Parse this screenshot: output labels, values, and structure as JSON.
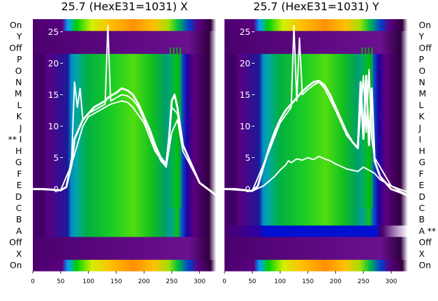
{
  "chart_data": [
    {
      "type": "heatmap",
      "title": "25.7 (HexE31=1031) X",
      "xlabel": "",
      "ylabel": "",
      "xlim": [
        0,
        330
      ],
      "ylim": [
        -13,
        27
      ],
      "x_ticks": [
        0,
        50,
        100,
        150,
        200,
        250,
        300
      ],
      "y_ticks": [
        0,
        5,
        10,
        15,
        20,
        25
      ],
      "row_labels": [
        "On",
        "X",
        "Off",
        "A",
        "B",
        "C",
        "D",
        "E",
        "F",
        "G",
        "H",
        "** I",
        "J",
        "K",
        "L",
        "M",
        "N",
        "O",
        "P",
        "Off",
        "Y",
        "On"
      ],
      "label_side": "left",
      "colormap": "nipy_spectral",
      "series": [
        {
          "name": "",
          "x": [
            0,
            20,
            50,
            60,
            70,
            75,
            80,
            85,
            90,
            100,
            110,
            120,
            130,
            135,
            140,
            150,
            160,
            170,
            180,
            190,
            200,
            210,
            220,
            230,
            240,
            245,
            250,
            255,
            260,
            265,
            270,
            280,
            300,
            330
          ],
          "y": [
            0,
            0,
            -0.2,
            0.3,
            4,
            8,
            9,
            10,
            11,
            12,
            13,
            13.5,
            14,
            14.5,
            14.8,
            15.3,
            16,
            15.7,
            15,
            13.5,
            11.5,
            9.5,
            7,
            5,
            4,
            8,
            14,
            15,
            13,
            10,
            7,
            5,
            1,
            -1
          ]
        },
        {
          "name": "",
          "x": [
            0,
            50,
            60,
            70,
            75,
            80,
            85,
            90,
            100,
            110,
            120,
            130,
            135,
            140,
            150,
            160,
            170,
            180,
            190,
            200,
            210,
            220,
            230,
            240,
            250,
            260,
            270,
            280,
            300,
            330
          ],
          "y": [
            0,
            -0.2,
            0.3,
            5,
            17,
            13,
            16,
            11,
            12,
            12.5,
            13,
            13.5,
            26,
            14,
            14.5,
            15,
            14.8,
            14.2,
            13,
            11,
            9,
            6.5,
            4.5,
            3.5,
            13,
            12,
            7,
            5,
            1,
            -1
          ]
        },
        {
          "name": "",
          "x": [
            0,
            50,
            70,
            90,
            100,
            120,
            140,
            160,
            170,
            180,
            200,
            220,
            240,
            250,
            260,
            270,
            300,
            330
          ],
          "y": [
            0,
            -0.2,
            4,
            10,
            11.5,
            12.5,
            13.5,
            14,
            13.8,
            13,
            10.5,
            6,
            3.5,
            9,
            11,
            6,
            1,
            -1
          ]
        }
      ]
    },
    {
      "type": "heatmap",
      "title": "25.7 (HexE31=1031) Y",
      "xlabel": "",
      "ylabel": "",
      "xlim": [
        0,
        330
      ],
      "ylim": [
        -13,
        27
      ],
      "x_ticks": [
        0,
        50,
        100,
        150,
        200,
        250,
        300
      ],
      "y_ticks": [
        0,
        5,
        10,
        15,
        20,
        25
      ],
      "row_labels": [
        "On",
        "X",
        "Off",
        "A **",
        "B",
        "C",
        "D",
        "E",
        "F",
        "G",
        "H",
        "I",
        "J",
        "K",
        "L",
        "M",
        "N",
        "O",
        "P",
        "Off",
        "Y",
        "On"
      ],
      "label_side": "right",
      "colormap": "nipy_spectral",
      "series": [
        {
          "name": "",
          "x": [
            0,
            20,
            50,
            60,
            70,
            80,
            90,
            100,
            110,
            120,
            130,
            140,
            150,
            160,
            170,
            180,
            190,
            200,
            210,
            220,
            230,
            240,
            245,
            250,
            255,
            260,
            265,
            270,
            280,
            300,
            330
          ],
          "y": [
            0,
            0,
            -0.3,
            0.5,
            3.5,
            6.5,
            9,
            11,
            12.5,
            13.5,
            14.5,
            15.5,
            16.3,
            17,
            17.2,
            16.5,
            15,
            13,
            11,
            9,
            7.5,
            6.5,
            17,
            8,
            18,
            7,
            16,
            4.5,
            2,
            0,
            -1
          ]
        },
        {
          "name": "",
          "x": [
            0,
            50,
            70,
            90,
            100,
            110,
            115,
            120,
            130,
            140,
            150,
            160,
            170,
            180,
            190,
            200,
            220,
            240,
            250,
            260,
            270,
            280,
            300,
            330
          ],
          "y": [
            0,
            -0.3,
            0.5,
            2,
            3,
            3.8,
            4.5,
            4.2,
            4.8,
            4.6,
            5,
            4.7,
            5.2,
            4.8,
            4.5,
            4,
            3.2,
            2.8,
            3.5,
            3,
            2.5,
            1.5,
            0.5,
            -0.5
          ]
        },
        {
          "name": "",
          "x": [
            0,
            50,
            80,
            100,
            120,
            125,
            130,
            135,
            140,
            150,
            160,
            170,
            180,
            200,
            220,
            240,
            250,
            255,
            260,
            265,
            270,
            300,
            330
          ],
          "y": [
            0,
            -0.3,
            6,
            10.5,
            13,
            26,
            14,
            24,
            15,
            15.8,
            16.5,
            17,
            16,
            12.5,
            8.5,
            6.5,
            18,
            9,
            19,
            8,
            5,
            0.5,
            -1
          ]
        }
      ]
    }
  ]
}
